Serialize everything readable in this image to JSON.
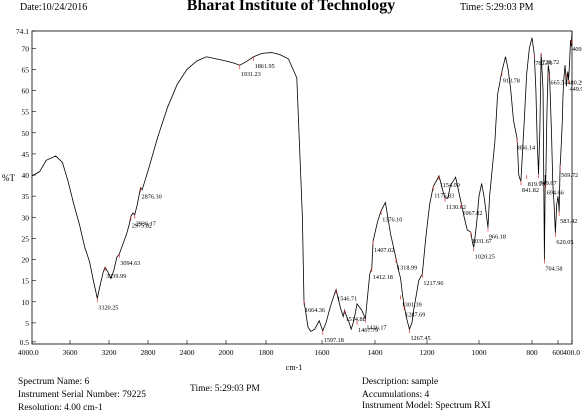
{
  "header": {
    "date": "Date:10/24/2016",
    "title": "Bharat Institute of Technology",
    "time": "Time: 5:29:03 PM"
  },
  "chart_data": {
    "type": "line",
    "xlabel": "cm-1",
    "ylabel": "%T",
    "xlim": [
      4000,
      400
    ],
    "ylim": [
      0,
      74.1
    ],
    "x_ticks": [
      "4000.0",
      "3600",
      "3200",
      "2800",
      "2400",
      "2000",
      "1800",
      "1600",
      "1400",
      "1200",
      "1000",
      "800",
      "600",
      "400.0"
    ],
    "y_ticks": [
      "0.5",
      "5",
      "10",
      "15",
      "20",
      "25",
      "30",
      "35",
      "40",
      "45",
      "50",
      "55",
      "60",
      "65",
      "70",
      "74.1"
    ],
    "series": [
      {
        "x": [
          4000,
          3920,
          3850,
          3750,
          3680,
          3620,
          3560,
          3500,
          3450,
          3400,
          3360,
          3320,
          3290,
          3260,
          3239.99,
          3210,
          3180,
          3150,
          3120,
          3094.63,
          3060,
          3020,
          2990,
          2975.82,
          2955,
          2936.17,
          2910,
          2876.3,
          2860,
          2800,
          2700,
          2600,
          2500,
          2400,
          2300,
          2200,
          2100,
          2000,
          1960,
          1931.23,
          1900,
          1861.95,
          1820,
          1780,
          1750,
          1720,
          1690,
          1670,
          1664.36,
          1650,
          1640,
          1626,
          1610,
          1597.18,
          1585,
          1570,
          1560,
          1546.71,
          1540,
          1530,
          1520,
          1514.88,
          1510,
          1500,
          1490,
          1480,
          1467.79,
          1450,
          1436.17,
          1420,
          1412.18,
          1407.02,
          1390,
          1376.1,
          1360,
          1340,
          1318.99,
          1312,
          1301.39,
          1294,
          1287.69,
          1280,
          1274,
          1267.45,
          1258,
          1250,
          1240,
          1232,
          1217.96,
          1205,
          1190,
          1175.83,
          1165,
          1154.09,
          1146,
          1138,
          1130.62,
          1120,
          1110,
          1090,
          1067.82,
          1057,
          1045,
          1031.67,
          1025,
          1020.25,
          1010,
          1000,
          990,
          980,
          966.18,
          960,
          940,
          930,
          913.78,
          900,
          890,
          880,
          870,
          856.14,
          850,
          845,
          841.82,
          830,
          820,
          810,
          800,
          782.36,
          770,
          760,
          749.67,
          740,
          729.72,
          715,
          704.58,
          698,
          694.66,
          685,
          675,
          665.54,
          650,
          640,
          630,
          620.05,
          610,
          600,
          590,
          583.42,
          575,
          569.72,
          560,
          540,
          530,
          520,
          510,
          500,
          490,
          480.29,
          470,
          460,
          449.96,
          440,
          420,
          409.79,
          400
        ],
        "y": [
          39.8,
          40.8,
          43.5,
          44.5,
          43.0,
          38.5,
          33.0,
          28.0,
          23.0,
          19.5,
          15.0,
          10.8,
          14.0,
          17.0,
          18.2,
          17.0,
          15.5,
          17.5,
          20.5,
          21.3,
          23.5,
          26.0,
          28.5,
          30.2,
          31.0,
          30.6,
          33.0,
          37.0,
          36.5,
          41.0,
          49.0,
          56.0,
          61.5,
          65.0,
          67.0,
          68.0,
          67.5,
          67.0,
          66.5,
          66.0,
          66.8,
          68.0,
          68.8,
          69.0,
          68.5,
          67.5,
          63.0,
          30.0,
          10.2,
          4.0,
          3.0,
          3.5,
          5.5,
          3.1,
          5.0,
          8.5,
          10.5,
          12.9,
          11.0,
          8.5,
          6.5,
          8.0,
          7.0,
          5.5,
          3.5,
          5.5,
          9.5,
          8.0,
          6.0,
          16.5,
          18.0,
          24.4,
          29.0,
          31.6,
          33.5,
          26.0,
          20.2,
          18.0,
          15.5,
          11.5,
          9.1,
          6.5,
          5.0,
          3.5,
          5.0,
          8.5,
          12.0,
          15.0,
          16.6,
          25.0,
          33.0,
          37.3,
          38.5,
          39.8,
          38.0,
          36.0,
          34.6,
          34.5,
          37.5,
          39.5,
          33.2,
          30.0,
          27.0,
          26.5,
          24.0,
          22.9,
          28.0,
          35.0,
          38.0,
          34.5,
          27.6,
          35.0,
          48.0,
          59.0,
          64.5,
          68.0,
          65.0,
          60.0,
          53.0,
          48.6,
          40.0,
          39.0,
          38.6,
          52.0,
          64.0,
          70.0,
          72.5,
          68.6,
          60.0,
          48.0,
          40.2,
          50.0,
          68.9,
          60.0,
          20.0,
          40.0,
          38.0,
          55.0,
          66.0,
          64.0,
          50.0,
          38.0,
          33.0,
          26.3,
          33.0,
          35.0,
          33.0,
          31.3,
          38.0,
          42.1,
          45.0,
          52.0,
          58.0,
          62.0,
          64.0,
          66.0,
          64.0,
          61.0,
          63.0,
          64.5,
          62.5,
          65.0,
          72.0,
          70.5,
          74.0
        ]
      }
    ],
    "peak_labels": [
      {
        "label": "3320.25",
        "x": 3320.25,
        "y": 10.8
      },
      {
        "label": "3239.99",
        "x": 3239.99,
        "y": 18.2
      },
      {
        "label": "3094.63",
        "x": 3094.63,
        "y": 21.3
      },
      {
        "label": "2975.82",
        "x": 2975.82,
        "y": 30.2
      },
      {
        "label": "2936.17",
        "x": 2936.17,
        "y": 30.6
      },
      {
        "label": "2876.30",
        "x": 2876.3,
        "y": 37.0
      },
      {
        "label": "1931.23",
        "x": 1931.23,
        "y": 66.0
      },
      {
        "label": "1861.95",
        "x": 1861.95,
        "y": 68.0
      },
      {
        "label": "1664.36",
        "x": 1664.36,
        "y": 10.2
      },
      {
        "label": "1597.18",
        "x": 1597.18,
        "y": 3.1
      },
      {
        "label": "1546.71",
        "x": 1546.71,
        "y": 12.9
      },
      {
        "label": "1514.88",
        "x": 1514.88,
        "y": 8.0
      },
      {
        "label": "1467.79",
        "x": 1467.79,
        "y": 5.5
      },
      {
        "label": "1436.17",
        "x": 1436.17,
        "y": 6.0
      },
      {
        "label": "1412.18",
        "x": 1412.18,
        "y": 18.0
      },
      {
        "label": "1407.02",
        "x": 1407.02,
        "y": 24.4
      },
      {
        "label": "1376.10",
        "x": 1376.1,
        "y": 31.6
      },
      {
        "label": "1318.99",
        "x": 1318.99,
        "y": 20.2
      },
      {
        "label": "1301.39",
        "x": 1301.39,
        "y": 11.5
      },
      {
        "label": "1287.69",
        "x": 1287.69,
        "y": 9.1
      },
      {
        "label": "1267.45",
        "x": 1267.45,
        "y": 3.5
      },
      {
        "label": "1217.96",
        "x": 1217.96,
        "y": 16.6
      },
      {
        "label": "1175.83",
        "x": 1175.83,
        "y": 37.3
      },
      {
        "label": "1154.09",
        "x": 1154.09,
        "y": 39.8
      },
      {
        "label": "1130.62",
        "x": 1130.62,
        "y": 34.6
      },
      {
        "label": "1067.82",
        "x": 1067.82,
        "y": 33.2
      },
      {
        "label": "1031.67",
        "x": 1031.67,
        "y": 26.5
      },
      {
        "label": "1020.25",
        "x": 1020.25,
        "y": 22.9
      },
      {
        "label": "966.18",
        "x": 966.18,
        "y": 27.6
      },
      {
        "label": "913.78",
        "x": 913.78,
        "y": 64.5
      },
      {
        "label": "856.14",
        "x": 856.14,
        "y": 48.6
      },
      {
        "label": "841.82",
        "x": 841.82,
        "y": 38.6
      },
      {
        "label": "819.99",
        "x": 819.99,
        "y": 40.0
      },
      {
        "label": "782.36",
        "x": 782.36,
        "y": 68.6
      },
      {
        "label": "749.67",
        "x": 749.67,
        "y": 40.2
      },
      {
        "label": "729.72",
        "x": 729.72,
        "y": 68.9
      },
      {
        "label": "704.58",
        "x": 704.58,
        "y": 20.0
      },
      {
        "label": "694.66",
        "x": 694.66,
        "y": 38.0
      },
      {
        "label": "665.54",
        "x": 665.54,
        "y": 64.0
      },
      {
        "label": "620.05",
        "x": 620.05,
        "y": 26.3
      },
      {
        "label": "583.42",
        "x": 583.42,
        "y": 31.3
      },
      {
        "label": "569.72",
        "x": 569.72,
        "y": 42.1
      },
      {
        "label": "480.29",
        "x": 480.29,
        "y": 64.0
      },
      {
        "label": "449.96",
        "x": 449.96,
        "y": 62.5
      },
      {
        "label": "409.79",
        "x": 409.79,
        "y": 72.0
      }
    ]
  },
  "footer": {
    "spectrum_name": "Spectrum Name: 6",
    "serial": "Instrument Serial Number: 79225",
    "resolution": "Resolution: 4.00 cm-1",
    "time": "Time: 5:29:03 PM",
    "description": "Description: sample",
    "accumulations": "Accumulations: 4",
    "model": "Instrument Model: Spectrum RXI"
  }
}
